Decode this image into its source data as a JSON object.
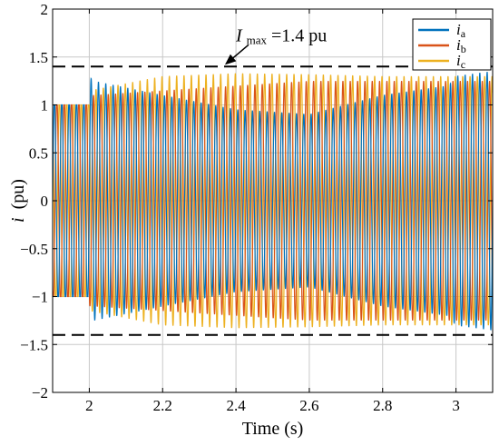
{
  "chart_data": {
    "type": "line",
    "title": "",
    "xlabel": "Time (s)",
    "ylabel_var": "i",
    "ylabel_unit": "(pu)",
    "xlim": [
      1.9,
      3.1
    ],
    "ylim": [
      -2,
      2
    ],
    "x_ticks": [
      2,
      2.2,
      2.4,
      2.6,
      2.8,
      3
    ],
    "x_tick_labels": [
      "2",
      "2.2",
      "2.4",
      "2.6",
      "2.8",
      "3"
    ],
    "y_ticks": [
      -2,
      -1.5,
      -1,
      -0.5,
      0,
      0.5,
      1,
      1.5,
      2
    ],
    "y_tick_labels": [
      "−2",
      "−1.5",
      "−1",
      "−0.5",
      "0",
      "0.5",
      "1",
      "1.5",
      "2"
    ],
    "grid": true,
    "legend_position": "top-right",
    "frequency_hz": 50,
    "disturbance_time_s": 2.0,
    "series": [
      {
        "name": "i",
        "subscript": "a",
        "color": "#0072BD",
        "phase_deg": 0,
        "envelope": {
          "t": [
            1.9,
            1.999,
            2.0,
            2.01,
            2.2,
            2.4,
            2.6,
            2.8,
            2.98,
            3.0,
            3.1
          ],
          "amp": [
            1.0,
            1.0,
            1.3,
            1.25,
            1.1,
            0.95,
            0.9,
            1.1,
            1.2,
            1.3,
            1.35
          ]
        }
      },
      {
        "name": "i",
        "subscript": "b",
        "color": "#D95319",
        "phase_deg": -120,
        "envelope": {
          "t": [
            1.9,
            1.999,
            2.0,
            2.2,
            2.4,
            2.6,
            2.8,
            3.0,
            3.1
          ],
          "amp": [
            1.0,
            1.0,
            1.1,
            1.15,
            1.2,
            1.25,
            1.25,
            1.25,
            1.25
          ]
        }
      },
      {
        "name": "i",
        "subscript": "c",
        "color": "#EDB120",
        "phase_deg": 120,
        "envelope": {
          "t": [
            1.9,
            1.999,
            2.0,
            2.2,
            2.4,
            2.6,
            2.8,
            3.0,
            3.1
          ],
          "amp": [
            1.0,
            1.0,
            1.15,
            1.3,
            1.33,
            1.32,
            1.3,
            1.3,
            1.3
          ]
        }
      }
    ],
    "limit_lines": [
      1.4,
      -1.4
    ],
    "annotation": {
      "var": "I",
      "sub": "max",
      "text": "=1.4 pu",
      "arrow_target_x": 2.37,
      "arrow_target_y": 1.4
    }
  }
}
